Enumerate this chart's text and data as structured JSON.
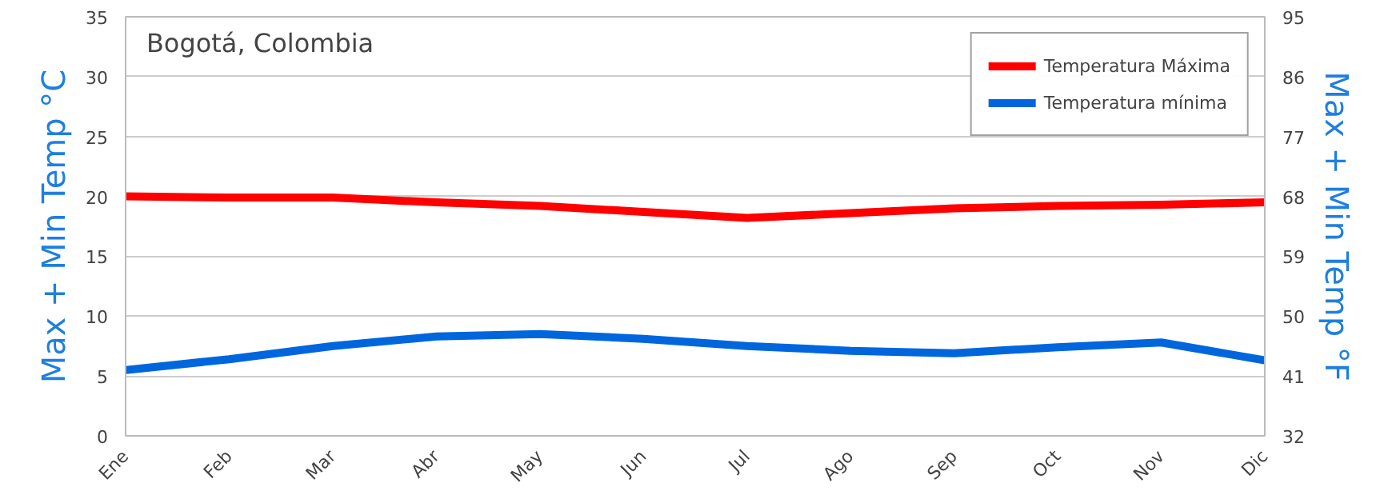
{
  "chart_data": {
    "type": "line",
    "title": "Bogotá, Colombia",
    "ylabel": "Max + Min Temp °C",
    "y2label": "Max + Min Temp °F",
    "categories": [
      "Ene",
      "Feb",
      "Mar",
      "Abr",
      "May",
      "Jun",
      "Jul",
      "Ago",
      "Sep",
      "Oct",
      "Nov",
      "Dic"
    ],
    "series": [
      {
        "name": "Temperatura Máxima",
        "color": "#ff0000",
        "values": [
          20,
          19.9,
          19.9,
          19.5,
          19.2,
          18.7,
          18.2,
          18.6,
          19,
          19.2,
          19.3,
          19.5
        ]
      },
      {
        "name": "Temperatura mínima",
        "color": "#0066dd",
        "values": [
          5.5,
          6.4,
          7.5,
          8.3,
          8.5,
          8.1,
          7.5,
          7.1,
          6.9,
          7.4,
          7.8,
          6.3
        ]
      }
    ],
    "ylim": [
      0,
      35
    ],
    "yticks": [
      0,
      5,
      10,
      15,
      20,
      25,
      30,
      35
    ],
    "y2lim": [
      32,
      95
    ],
    "y2ticks": [
      32,
      41,
      50,
      59,
      68,
      77,
      86,
      95
    ],
    "grid": "y",
    "legend": "top right",
    "marker": "none",
    "line_style": "solid"
  }
}
